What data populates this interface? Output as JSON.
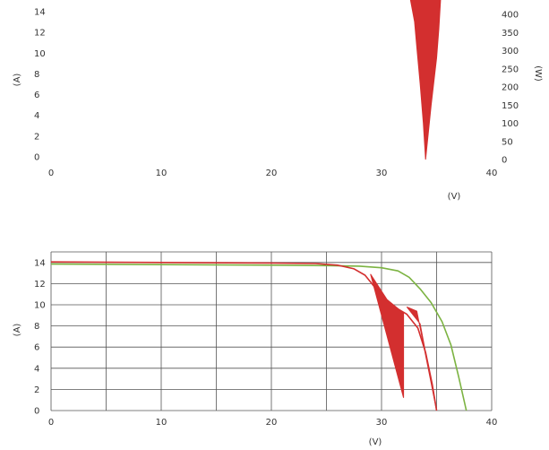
{
  "colors": {
    "current_curve": "#7cb342",
    "power_curve": "#d32f2f",
    "grid": "#555555",
    "text": "#333333"
  },
  "chart_data": [
    {
      "type": "line",
      "title": "",
      "xlabel": "(V)",
      "ylabel": "(A)",
      "ylabel_right": "(W)",
      "xlim": [
        0,
        40
      ],
      "ylim": [
        0,
        14
      ],
      "ylim_right": [
        0,
        400
      ],
      "x_ticks": [
        "0",
        "10",
        "20",
        "30",
        "40"
      ],
      "y_ticks": [
        "0",
        "2",
        "4",
        "6",
        "8",
        "10",
        "12",
        "14"
      ],
      "y_ticks_right": [
        "0",
        "50",
        "100",
        "150",
        "200",
        "250",
        "300",
        "350",
        "400"
      ],
      "grid": false,
      "series": [
        {
          "axis": "right",
          "color": "#d32f2f",
          "points": [
            {
              "x": 32.5,
              "y": 460
            },
            {
              "x": 33,
              "y": 380
            },
            {
              "x": 33.2,
              "y": 310
            },
            {
              "x": 33.5,
              "y": 210
            },
            {
              "x": 33.8,
              "y": 100
            },
            {
              "x": 34,
              "y": 0
            },
            {
              "x": 34.5,
              "y": 150
            },
            {
              "x": 35,
              "y": 280
            },
            {
              "x": 35.2,
              "y": 360
            },
            {
              "x": 35.4,
              "y": 460
            }
          ]
        }
      ]
    },
    {
      "type": "line",
      "title": "",
      "xlabel": "(V)",
      "ylabel": "(A)",
      "xlim": [
        0,
        40
      ],
      "ylim": [
        0,
        15
      ],
      "x_ticks": [
        "0",
        "10",
        "20",
        "30",
        "40"
      ],
      "y_ticks": [
        "0",
        "2",
        "4",
        "6",
        "8",
        "10",
        "12",
        "14"
      ],
      "grid": true,
      "series": [
        {
          "color": "#7cb342",
          "points": [
            {
              "x": 0,
              "y": 13.85
            },
            {
              "x": 10,
              "y": 13.8
            },
            {
              "x": 20,
              "y": 13.75
            },
            {
              "x": 25,
              "y": 13.7
            },
            {
              "x": 28,
              "y": 13.65
            },
            {
              "x": 30,
              "y": 13.5
            },
            {
              "x": 31.5,
              "y": 13.2
            },
            {
              "x": 32.5,
              "y": 12.6
            },
            {
              "x": 33.5,
              "y": 11.5
            },
            {
              "x": 34.5,
              "y": 10.2
            },
            {
              "x": 35.5,
              "y": 8.4
            },
            {
              "x": 36.3,
              "y": 6.2
            },
            {
              "x": 37,
              "y": 3.2
            },
            {
              "x": 37.7,
              "y": 0
            }
          ]
        },
        {
          "color": "#d32f2f",
          "points": [
            {
              "x": 0,
              "y": 14.05
            },
            {
              "x": 10,
              "y": 14.0
            },
            {
              "x": 20,
              "y": 13.95
            },
            {
              "x": 24,
              "y": 13.9
            },
            {
              "x": 26,
              "y": 13.75
            },
            {
              "x": 27.5,
              "y": 13.4
            },
            {
              "x": 28.5,
              "y": 12.8
            },
            {
              "x": 29.5,
              "y": 11.5
            },
            {
              "x": 30.5,
              "y": 10.3
            },
            {
              "x": 31.5,
              "y": 9.6
            },
            {
              "x": 32.3,
              "y": 9.1
            },
            {
              "x": 33.3,
              "y": 7.8
            },
            {
              "x": 34,
              "y": 5.5
            },
            {
              "x": 34.6,
              "y": 2.5
            },
            {
              "x": 35,
              "y": 0
            }
          ]
        }
      ],
      "shaded_regions": [
        {
          "color": "#d32f2f",
          "points": [
            {
              "x": 29,
              "y": 12.9
            },
            {
              "x": 30.5,
              "y": 10.5
            },
            {
              "x": 32,
              "y": 9.2
            },
            {
              "x": 32,
              "y": 1.2
            }
          ]
        },
        {
          "color": "#d32f2f",
          "points": [
            {
              "x": 32.3,
              "y": 9.8
            },
            {
              "x": 33.5,
              "y": 8.2
            },
            {
              "x": 35,
              "y": 0
            },
            {
              "x": 33.2,
              "y": 9.4
            }
          ]
        }
      ]
    }
  ]
}
